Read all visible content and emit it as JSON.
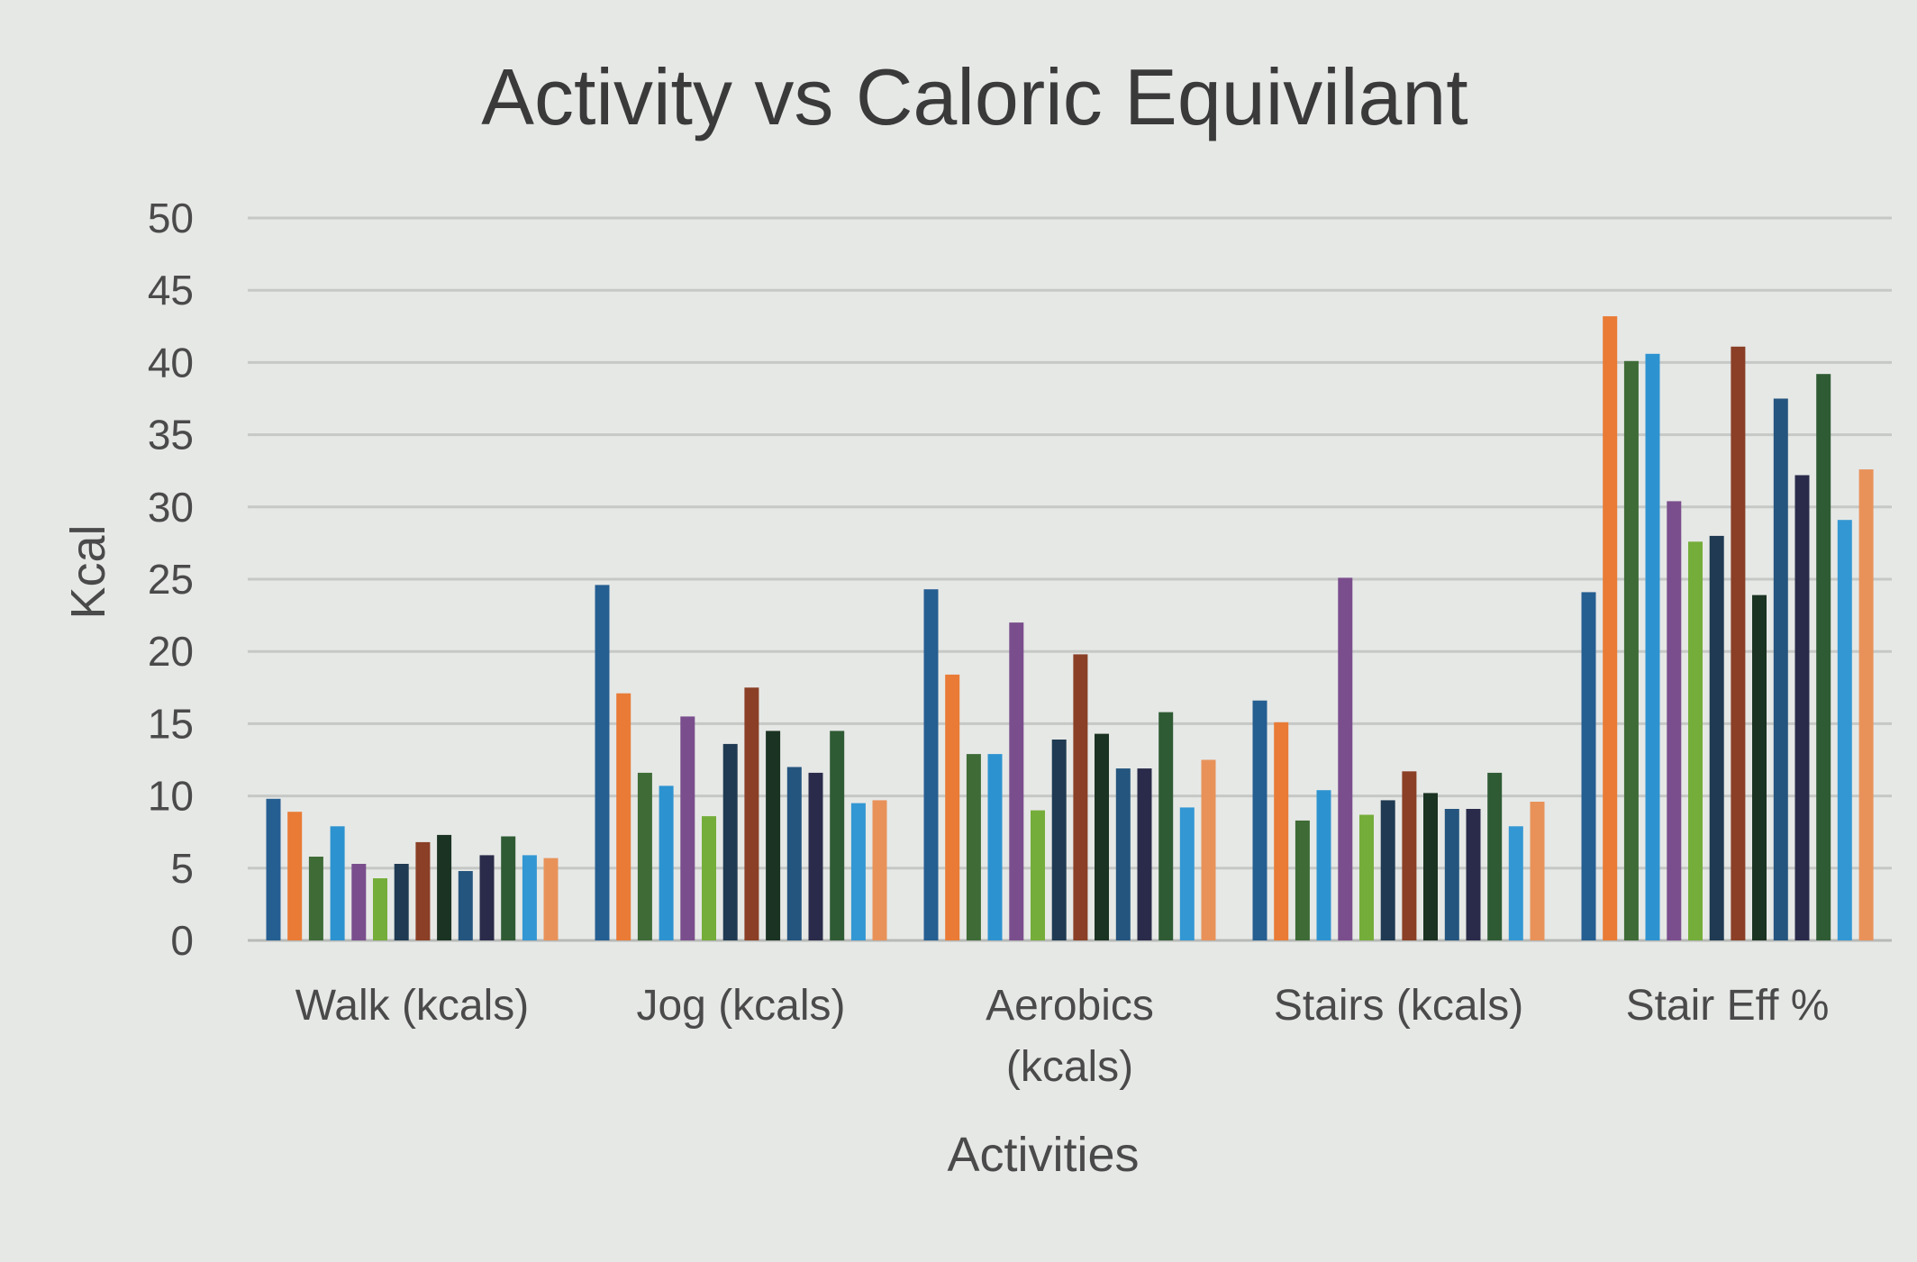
{
  "chart_data": {
    "type": "bar",
    "title": "Activity vs Caloric Equivilant",
    "xlabel": "Activities",
    "ylabel": "Kcal",
    "ylim": [
      0,
      50
    ],
    "yticks": [
      "0",
      "5",
      "10",
      "15",
      "20",
      "25",
      "30",
      "35",
      "40",
      "45",
      "50"
    ],
    "grid": true,
    "legend": "none",
    "categories": [
      "Walk (kcals)",
      "Jog (kcals)",
      "Aerobics (kcals)",
      "Stairs (kcals)",
      "Stair Eff %"
    ],
    "category_lines": [
      [
        "Walk (kcals)"
      ],
      [
        "Jog (kcals)"
      ],
      [
        "Aerobics",
        "(kcals)"
      ],
      [
        "Stairs (kcals)"
      ],
      [
        "Stair Eff %"
      ]
    ],
    "series": [
      {
        "color": "#255e91",
        "values": [
          9.8,
          24.6,
          24.3,
          16.6,
          24.1
        ]
      },
      {
        "color": "#e97b36",
        "values": [
          8.9,
          17.1,
          18.4,
          15.1,
          43.2
        ]
      },
      {
        "color": "#3e6b36",
        "values": [
          5.8,
          11.6,
          12.9,
          8.3,
          40.1
        ]
      },
      {
        "color": "#2d93d0",
        "values": [
          7.9,
          10.7,
          12.9,
          10.4,
          40.6
        ]
      },
      {
        "color": "#7a4e8c",
        "values": [
          5.3,
          15.5,
          22.0,
          25.1,
          30.4
        ]
      },
      {
        "color": "#75ad3a",
        "values": [
          4.3,
          8.6,
          9.0,
          8.7,
          27.6
        ]
      },
      {
        "color": "#1f3a52",
        "values": [
          5.3,
          13.6,
          13.9,
          9.7,
          28.0
        ]
      },
      {
        "color": "#8a3f26",
        "values": [
          6.8,
          17.5,
          19.8,
          11.7,
          41.1
        ]
      },
      {
        "color": "#1b3322",
        "values": [
          7.3,
          14.5,
          14.3,
          10.2,
          23.9
        ]
      },
      {
        "color": "#24557e",
        "values": [
          4.8,
          12.0,
          11.9,
          9.1,
          37.5
        ]
      },
      {
        "color": "#2a2b4a",
        "values": [
          5.9,
          11.6,
          11.9,
          9.1,
          32.2
        ]
      },
      {
        "color": "#2f5b34",
        "values": [
          7.2,
          14.5,
          15.8,
          11.6,
          39.2
        ]
      },
      {
        "color": "#3397d3",
        "values": [
          5.9,
          9.5,
          9.2,
          7.9,
          29.1
        ]
      },
      {
        "color": "#e8925a",
        "values": [
          5.7,
          9.7,
          12.5,
          9.6,
          32.6
        ]
      }
    ]
  }
}
